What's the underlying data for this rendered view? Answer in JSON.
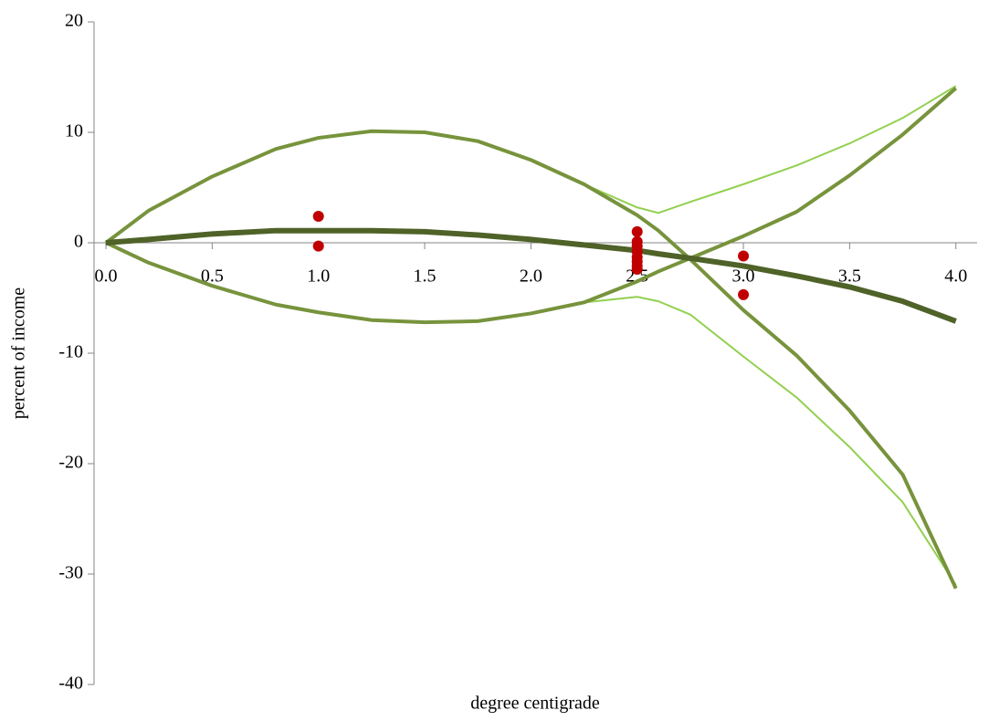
{
  "chart_data": {
    "type": "line",
    "xlabel": "degree centigrade",
    "ylabel": "percent of income",
    "xlim": [
      -0.056,
      4.1
    ],
    "ylim": [
      -40,
      20
    ],
    "xticks": [
      {
        "value": 0,
        "label": "0.0"
      },
      0.5,
      {
        "value": 1,
        "label": "1.0"
      },
      1.5,
      {
        "value": 2,
        "label": "2.0"
      },
      2.5,
      {
        "value": 3,
        "label": "3.0"
      },
      3.5,
      {
        "value": 4,
        "label": "4.0"
      }
    ],
    "yticks": [
      20,
      10,
      0,
      -10,
      -20,
      -30,
      -40
    ],
    "x": [
      0,
      0.2,
      0.5,
      0.8,
      1.0,
      1.25,
      1.5,
      1.75,
      2.0,
      2.25,
      2.5,
      2.6,
      2.75,
      3.0,
      3.25,
      3.5,
      3.75,
      4.0
    ],
    "series": [
      {
        "color": "#92d050",
        "line_width": 2,
        "values": [
          0,
          2.9,
          6.0,
          8.5,
          9.5,
          10.1,
          10.0,
          9.2,
          7.5,
          5.3,
          3.2,
          2.7,
          3.7,
          5.3,
          7.0,
          9.0,
          11.3,
          14.2
        ]
      },
      {
        "color": "#92d050",
        "line_width": 2,
        "values": [
          0,
          -1.8,
          -3.9,
          -5.6,
          -6.3,
          -7.0,
          -7.2,
          -7.1,
          -6.4,
          -5.4,
          -4.9,
          -5.3,
          -6.5,
          -10.3,
          -14.0,
          -18.5,
          -23.5,
          -31.0
        ]
      },
      {
        "color": "#77933c",
        "line_width": 4,
        "values": [
          0,
          2.9,
          6.0,
          8.5,
          9.5,
          10.1,
          10.0,
          9.2,
          7.5,
          5.3,
          2.5,
          1.1,
          -1.5,
          -6.1,
          -10.2,
          -15.2,
          -21,
          -31.3
        ]
      },
      {
        "color": "#77933c",
        "line_width": 4,
        "values": [
          0,
          -1.8,
          -3.9,
          -5.6,
          -6.3,
          -7.0,
          -7.2,
          -7.1,
          -6.4,
          -5.4,
          -3.5,
          -2.6,
          -1.4,
          0.6,
          2.8,
          6.1,
          9.8,
          14.0
        ]
      },
      {
        "color": "#4f6228",
        "line_width": 6,
        "values": [
          0,
          0.3,
          0.8,
          1.1,
          1.1,
          1.1,
          1.0,
          0.7,
          0.3,
          -0.2,
          -0.7,
          -1.0,
          -1.4,
          -2.1,
          -3.0,
          -4.0,
          -5.3,
          -7.1
        ]
      },
      {
        "type": "scatter",
        "color": "#c00000",
        "x": [
          1.0,
          1.0,
          2.5,
          2.5,
          2.5,
          2.5,
          2.5,
          2.5,
          2.5,
          2.5,
          3.0,
          3.0
        ],
        "values": [
          2.4,
          -0.3,
          1.0,
          0.1,
          -0.3,
          -0.8,
          -1.3,
          -1.7,
          -2.1,
          -2.4,
          -1.2,
          -4.7
        ]
      }
    ]
  }
}
